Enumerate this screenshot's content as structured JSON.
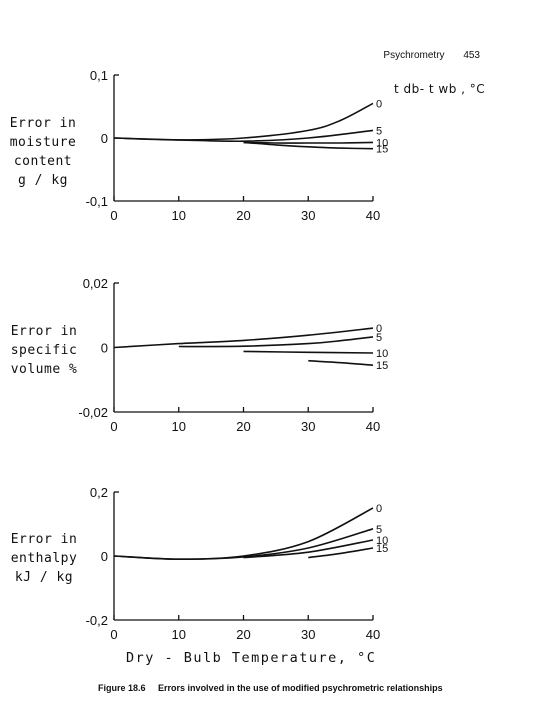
{
  "page_header": {
    "section": "Psychrometry",
    "page_number": "453"
  },
  "legend_title": "t db- t wb , °C",
  "xlabel": "Dry - Bulb Temperature, °C",
  "caption": {
    "label": "Figure 18.6",
    "text": "Errors involved in the use of modified psychrometric relationships"
  },
  "chart_data": [
    {
      "type": "line",
      "ylabel_lines": [
        "Error in",
        "moisture",
        "content",
        "g / kg"
      ],
      "xlim": [
        0,
        40
      ],
      "ylim": [
        -0.1,
        0.1
      ],
      "x_ticks": [
        "0",
        "10",
        "20",
        "30",
        "40"
      ],
      "y_ticks": [
        "0,1",
        "0",
        "-0,1"
      ],
      "series": [
        {
          "name": "0",
          "x": [
            0,
            10,
            20,
            30,
            35,
            40
          ],
          "y": [
            0.0,
            -0.003,
            0.0,
            0.012,
            0.028,
            0.055
          ]
        },
        {
          "name": "5",
          "x": [
            0,
            10,
            20,
            30,
            40
          ],
          "y": [
            0.0,
            -0.003,
            -0.005,
            0.0,
            0.012
          ]
        },
        {
          "name": "10",
          "x": [
            20,
            25,
            30,
            35,
            40
          ],
          "y": [
            -0.007,
            -0.008,
            -0.008,
            -0.008,
            -0.007
          ]
        },
        {
          "name": "15",
          "x": [
            20,
            25,
            30,
            35,
            40
          ],
          "y": [
            -0.007,
            -0.011,
            -0.014,
            -0.016,
            -0.017
          ]
        }
      ]
    },
    {
      "type": "line",
      "ylabel_lines": [
        "Error in",
        "specific",
        "volume %"
      ],
      "xlim": [
        0,
        40
      ],
      "ylim": [
        -0.02,
        0.02
      ],
      "x_ticks": [
        "0",
        "10",
        "20",
        "30",
        "40"
      ],
      "y_ticks": [
        "0,02",
        "0",
        "-0,02"
      ],
      "series": [
        {
          "name": "0",
          "x": [
            0,
            10,
            20,
            30,
            40
          ],
          "y": [
            0.0,
            0.0012,
            0.0022,
            0.0038,
            0.006
          ]
        },
        {
          "name": "5",
          "x": [
            10,
            20,
            30,
            35,
            40
          ],
          "y": [
            0.0003,
            0.0004,
            0.0012,
            0.0021,
            0.0033
          ]
        },
        {
          "name": "10",
          "x": [
            20,
            30,
            40
          ],
          "y": [
            -0.0012,
            -0.0015,
            -0.0017
          ]
        },
        {
          "name": "15",
          "x": [
            30,
            35,
            40
          ],
          "y": [
            -0.0041,
            -0.0047,
            -0.0055
          ]
        }
      ]
    },
    {
      "type": "line",
      "ylabel_lines": [
        "Error in",
        "enthalpy",
        "kJ / kg"
      ],
      "xlim": [
        0,
        40
      ],
      "ylim": [
        -0.2,
        0.2
      ],
      "x_ticks": [
        "0",
        "10",
        "20",
        "30",
        "40"
      ],
      "y_ticks": [
        "0,2",
        "0",
        "-0,2"
      ],
      "series": [
        {
          "name": "0",
          "x": [
            0,
            10,
            20,
            30,
            40
          ],
          "y": [
            0.0,
            -0.01,
            0.0,
            0.045,
            0.15
          ]
        },
        {
          "name": "5",
          "x": [
            0,
            10,
            20,
            30,
            40
          ],
          "y": [
            0.0,
            -0.01,
            -0.003,
            0.025,
            0.085
          ]
        },
        {
          "name": "10",
          "x": [
            20,
            30,
            40
          ],
          "y": [
            -0.005,
            0.012,
            0.05
          ]
        },
        {
          "name": "15",
          "x": [
            30,
            35,
            40
          ],
          "y": [
            -0.005,
            0.008,
            0.025
          ]
        }
      ]
    }
  ]
}
